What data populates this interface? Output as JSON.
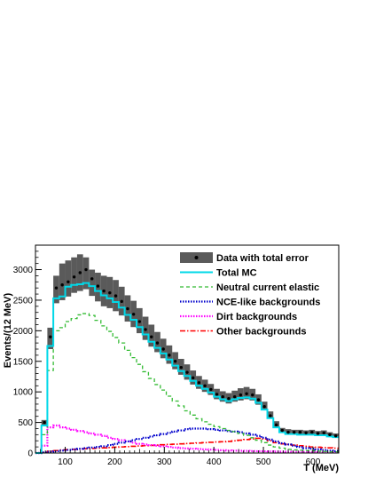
{
  "chart_data": {
    "type": "line",
    "xlabel": "T (MeV)",
    "ylabel": "Events/(12 MeV)",
    "xlim": [
      40,
      652
    ],
    "ylim": [
      0,
      3400
    ],
    "bin_width": 12,
    "x_ticks": [
      100,
      200,
      300,
      400,
      500,
      600
    ],
    "y_ticks": [
      0,
      500,
      1000,
      1500,
      2000,
      2500,
      3000
    ],
    "grid": false,
    "legend_position": "top-right",
    "bin_lower_edges": [
      40,
      52,
      64,
      76,
      88,
      100,
      112,
      124,
      136,
      148,
      160,
      172,
      184,
      196,
      208,
      220,
      232,
      244,
      256,
      268,
      280,
      292,
      304,
      316,
      328,
      340,
      352,
      364,
      376,
      388,
      400,
      412,
      424,
      436,
      448,
      460,
      472,
      484,
      496,
      508,
      520,
      532,
      544,
      556,
      568,
      580,
      592,
      604,
      616,
      628,
      640
    ],
    "series": [
      {
        "name": "Data with total error",
        "style": "points-with-error-band",
        "color": "#000000",
        "band_color": "#5a5a5a",
        "values": [
          0,
          500,
          1900,
          2700,
          2750,
          2800,
          2880,
          2950,
          3000,
          2850,
          2730,
          2650,
          2620,
          2570,
          2480,
          2360,
          2270,
          2150,
          2020,
          1900,
          1800,
          1700,
          1600,
          1500,
          1400,
          1320,
          1230,
          1150,
          1100,
          1040,
          960,
          920,
          890,
          920,
          950,
          970,
          950,
          870,
          760,
          610,
          460,
          370,
          340,
          340,
          340,
          330,
          340,
          320,
          330,
          300,
          280
        ],
        "err_low": [
          0,
          460,
          1700,
          2450,
          2500,
          2560,
          2620,
          2650,
          2680,
          2570,
          2480,
          2400,
          2370,
          2320,
          2250,
          2150,
          2060,
          1960,
          1850,
          1740,
          1650,
          1550,
          1460,
          1370,
          1280,
          1200,
          1120,
          1050,
          1000,
          950,
          880,
          840,
          810,
          840,
          860,
          880,
          860,
          790,
          700,
          560,
          430,
          330,
          310,
          310,
          310,
          300,
          310,
          290,
          300,
          270,
          260
        ],
        "err_high": [
          0,
          540,
          2050,
          2900,
          3100,
          3150,
          3200,
          3250,
          3200,
          3000,
          2950,
          2900,
          2880,
          2830,
          2720,
          2580,
          2490,
          2370,
          2230,
          2100,
          1980,
          1870,
          1760,
          1650,
          1540,
          1450,
          1350,
          1260,
          1200,
          1130,
          1050,
          1010,
          980,
          1020,
          1060,
          1080,
          1050,
          960,
          840,
          680,
          520,
          410,
          390,
          380,
          380,
          370,
          380,
          360,
          370,
          340,
          320
        ]
      },
      {
        "name": "Total MC",
        "style": "step",
        "color": "#00d8e8",
        "values": [
          0,
          450,
          1750,
          2530,
          2560,
          2720,
          2750,
          2760,
          2780,
          2730,
          2650,
          2580,
          2530,
          2470,
          2380,
          2260,
          2180,
          2060,
          1940,
          1820,
          1720,
          1630,
          1530,
          1430,
          1340,
          1260,
          1180,
          1100,
          1050,
          990,
          920,
          880,
          850,
          880,
          900,
          910,
          890,
          820,
          710,
          570,
          420,
          340,
          310,
          310,
          300,
          300,
          300,
          290,
          290,
          270,
          260
        ]
      },
      {
        "name": "Neutral current elastic",
        "style": "dashed-step",
        "color": "#33bb33",
        "values": [
          0,
          300,
          1350,
          2000,
          2050,
          2150,
          2200,
          2260,
          2280,
          2250,
          2170,
          2080,
          1990,
          1890,
          1800,
          1680,
          1560,
          1450,
          1330,
          1220,
          1120,
          1030,
          930,
          850,
          770,
          690,
          620,
          560,
          510,
          470,
          430,
          400,
          370,
          350,
          320,
          290,
          250,
          210,
          170,
          130,
          100,
          80,
          60,
          50,
          45,
          40,
          35,
          30,
          25,
          20,
          20
        ]
      },
      {
        "name": "NCE-like backgrounds",
        "style": "dotted-step",
        "color": "#0000cc",
        "values": [
          0,
          10,
          20,
          30,
          40,
          50,
          60,
          70,
          80,
          90,
          100,
          110,
          130,
          150,
          170,
          190,
          210,
          230,
          250,
          270,
          290,
          310,
          330,
          350,
          370,
          390,
          400,
          400,
          400,
          390,
          380,
          370,
          360,
          350,
          340,
          320,
          300,
          280,
          250,
          220,
          190,
          160,
          140,
          120,
          100,
          80,
          70,
          60,
          50,
          40,
          30
        ]
      },
      {
        "name": "Dirt backgrounds",
        "style": "dotted-step",
        "color": "#ff00ff",
        "values": [
          0,
          120,
          420,
          450,
          420,
          400,
          380,
          360,
          340,
          320,
          300,
          280,
          250,
          230,
          210,
          190,
          170,
          150,
          140,
          130,
          120,
          110,
          100,
          90,
          80,
          75,
          70,
          65,
          60,
          55,
          50,
          45,
          40,
          38,
          36,
          34,
          32,
          30,
          28,
          26,
          24,
          22,
          20,
          18,
          16,
          15,
          14,
          13,
          12,
          11,
          10
        ]
      },
      {
        "name": "Other backgrounds",
        "style": "dash-dot-step",
        "color": "#ff0000",
        "values": [
          0,
          10,
          30,
          40,
          50,
          55,
          60,
          65,
          70,
          75,
          80,
          85,
          90,
          95,
          100,
          105,
          110,
          115,
          120,
          125,
          130,
          135,
          140,
          145,
          150,
          155,
          160,
          165,
          170,
          175,
          180,
          185,
          190,
          200,
          210,
          220,
          230,
          240,
          230,
          200,
          170,
          150,
          140,
          130,
          120,
          110,
          100,
          95,
          90,
          85,
          80
        ]
      }
    ]
  }
}
